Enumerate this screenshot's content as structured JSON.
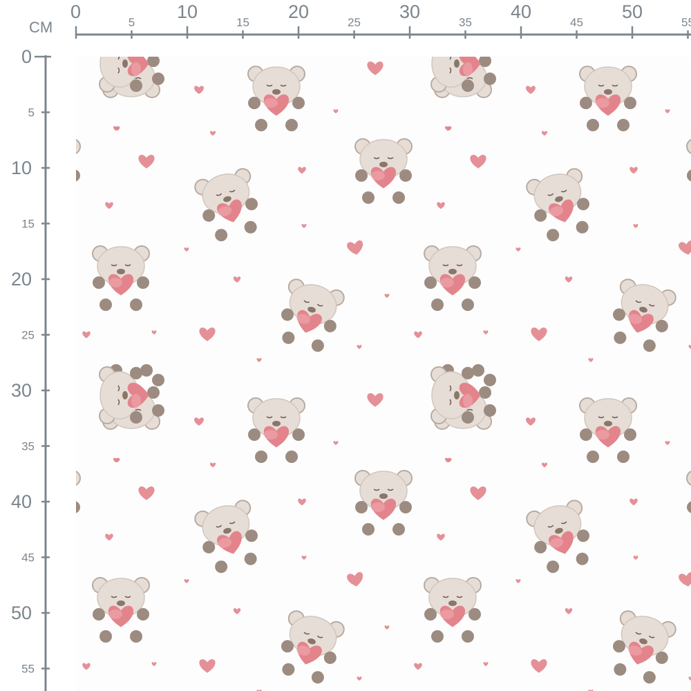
{
  "ruler": {
    "unit_label": "CM",
    "color": "#7b868e",
    "top_labels": [
      "0",
      "5",
      "10",
      "15",
      "20",
      "25",
      "30",
      "35",
      "40",
      "45",
      "50",
      "55"
    ],
    "left_labels": [
      "0",
      "5",
      "10",
      "15",
      "20",
      "25",
      "30",
      "35",
      "40",
      "45",
      "50",
      "55"
    ]
  },
  "fabric": {
    "pattern": "teddy bears holding hearts with scattered hearts",
    "background": "#fdfdfd",
    "colors": {
      "bear": "#e6ddd6",
      "bear_shadow": "#b8aaa0",
      "paw": "#9c8b80",
      "heart": "#e3848c",
      "heart_light": "#eda4a9"
    }
  }
}
